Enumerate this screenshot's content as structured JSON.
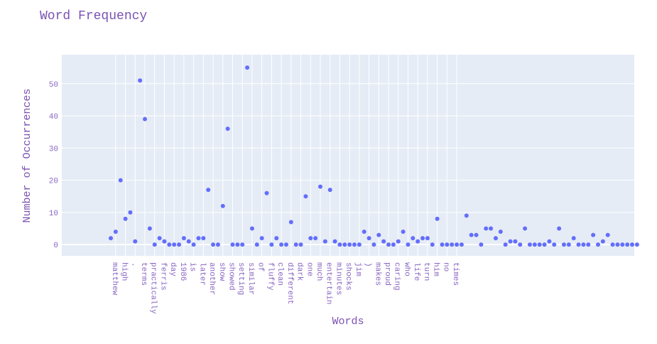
{
  "chart_data": {
    "type": "scatter",
    "title": "Word Frequency",
    "xlabel": "Words",
    "ylabel": "Number of Occurrences",
    "ylim": [
      -3.5,
      59
    ],
    "yticks": [
      0,
      10,
      20,
      30,
      40,
      50
    ],
    "grid": true,
    "legend": "none",
    "marker_color": "#636efa",
    "plot_bg": "#e5ecf6",
    "x_tick_labels": [
      {
        "label": "matthew",
        "index": 1
      },
      {
        "label": "high",
        "index": 3
      },
      {
        "label": ".",
        "index": 5
      },
      {
        "label": "terms",
        "index": 7
      },
      {
        "label": "practically",
        "index": 9
      },
      {
        "label": "ferris",
        "index": 11
      },
      {
        "label": "day",
        "index": 13
      },
      {
        "label": "1986",
        "index": 15
      },
      {
        "label": "is",
        "index": 17
      },
      {
        "label": "later",
        "index": 19
      },
      {
        "label": "another",
        "index": 21
      },
      {
        "label": "show",
        "index": 23
      },
      {
        "label": "showed",
        "index": 25
      },
      {
        "label": "setting",
        "index": 27
      },
      {
        "label": "similar",
        "index": 29
      },
      {
        "label": "of",
        "index": 31
      },
      {
        "label": "fluffy",
        "index": 33
      },
      {
        "label": "clean",
        "index": 35
      },
      {
        "label": "different",
        "index": 37
      },
      {
        "label": "dark",
        "index": 39
      },
      {
        "label": "one",
        "index": 41
      },
      {
        "label": "much",
        "index": 43
      },
      {
        "label": "entertain",
        "index": 45
      },
      {
        "label": "minutes",
        "index": 47
      },
      {
        "label": "shocks",
        "index": 49
      },
      {
        "label": "jim",
        "index": 51
      },
      {
        "label": ")",
        "index": 53
      },
      {
        "label": "makes",
        "index": 55
      },
      {
        "label": "proud",
        "index": 57
      },
      {
        "label": "caring",
        "index": 59
      },
      {
        "label": "who",
        "index": 61
      },
      {
        "label": "life",
        "index": 63
      },
      {
        "label": "turn",
        "index": 65
      },
      {
        "label": "him",
        "index": 67
      },
      {
        "label": "no",
        "index": 69
      },
      {
        "label": "times",
        "index": 71
      }
    ],
    "values": [
      2,
      4,
      20,
      8,
      10,
      1,
      51,
      39,
      5,
      0,
      2,
      1,
      0,
      0,
      0,
      2,
      1,
      0,
      2,
      2,
      17,
      0,
      0,
      12,
      36,
      0,
      0,
      0,
      55,
      5,
      0,
      2,
      16,
      0,
      2,
      0,
      0,
      7,
      0,
      0,
      15,
      2,
      2,
      18,
      1,
      17,
      1,
      0,
      0,
      0,
      0,
      0,
      4,
      2,
      0,
      3,
      1,
      0,
      0,
      1,
      4,
      0,
      2,
      1,
      2,
      2,
      0,
      8,
      0,
      0,
      0,
      0,
      0,
      9,
      3,
      3,
      0,
      5,
      5,
      2,
      4,
      0,
      1,
      1,
      0,
      5,
      0,
      0,
      0,
      0,
      1,
      0,
      5,
      0,
      0,
      2,
      0,
      0,
      0,
      3,
      0,
      1,
      3,
      0,
      0,
      0,
      0,
      0,
      0
    ]
  }
}
